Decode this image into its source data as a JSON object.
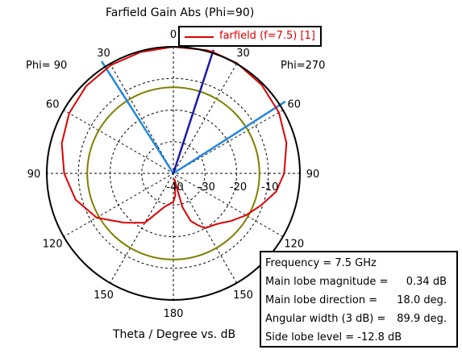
{
  "chart_data": {
    "type": "polar",
    "title": "Farfield Gain Abs (Phi=90)",
    "xlabel": "Theta / Degree vs. dB",
    "phi_labels": {
      "left": "Phi= 90",
      "right": "Phi=270"
    },
    "angle_labels": [
      "0",
      "30",
      "60",
      "90",
      "120",
      "150",
      "180",
      "150",
      "120",
      "90",
      "60",
      "30"
    ],
    "radial_range_db": [
      -40,
      0
    ],
    "radial_tick_labels": [
      "-40",
      "-30",
      "-20",
      "-10"
    ],
    "grid": true,
    "legend": {
      "position": "top-center",
      "entries": [
        "farfield (f=7.5) [1]"
      ]
    },
    "series": [
      {
        "name": "farfield (f=7.5) [1]",
        "color": "#dd0000",
        "theta_deg": [
          -180,
          -165,
          -150,
          -135,
          -120,
          -105,
          -90,
          -75,
          -60,
          -45,
          -30,
          -15,
          0,
          15,
          18,
          30,
          45,
          60,
          75,
          90,
          100,
          110,
          120,
          130,
          135,
          140,
          150,
          155,
          160,
          165,
          170,
          175,
          180
        ],
        "gain_db": [
          -31,
          -29,
          -22,
          -18,
          -12,
          -8,
          -5.5,
          -3.5,
          -2,
          -1,
          -0.5,
          -0.3,
          0,
          0.3,
          0.34,
          0.2,
          -0.5,
          -1.5,
          -3,
          -5,
          -7,
          -10.5,
          -13.5,
          -16.5,
          -18,
          -19,
          -20,
          -22,
          -24,
          -29,
          -38,
          -33,
          -31
        ]
      }
    ],
    "reference_circle": {
      "value_db": -12.8,
      "color": "#808000"
    },
    "main_lobe_direction_deg": 18.0,
    "main_lobe_color": "#1a1aa8",
    "beamwidth_edges_deg": [
      -32.6,
      57.3
    ],
    "beamwidth_color": "#2288dd",
    "info": {
      "rows": [
        {
          "label": "Frequency = 7.5 GHz",
          "value": ""
        },
        {
          "label": "Main lobe magnitude =",
          "value": "0.34 dB"
        },
        {
          "label": "Main lobe direction =",
          "value": "18.0 deg."
        },
        {
          "label": "Angular width (3 dB) =",
          "value": "89.9 deg."
        },
        {
          "label": "Side lobe level =  -12.8 dB",
          "value": ""
        }
      ]
    }
  }
}
